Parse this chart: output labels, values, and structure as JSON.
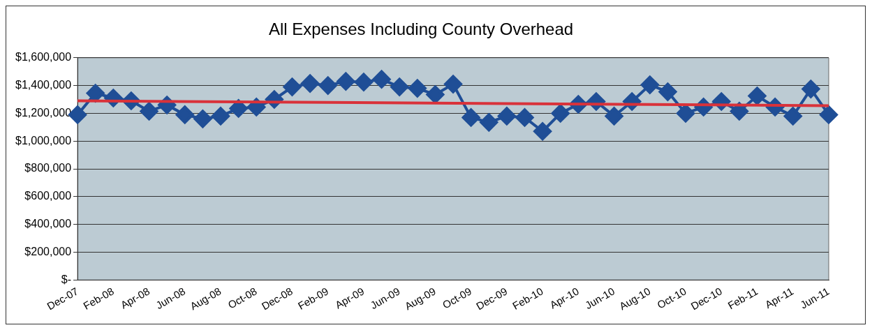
{
  "chart_data": {
    "type": "line",
    "title": "All Expenses Including County Overhead",
    "categories": [
      "Dec-07",
      null,
      "Feb-08",
      null,
      "Apr-08",
      null,
      "Jun-08",
      null,
      "Aug-08",
      null,
      "Oct-08",
      null,
      "Dec-08",
      null,
      "Feb-09",
      null,
      "Apr-09",
      null,
      "Jun-09",
      null,
      "Aug-09",
      null,
      "Oct-09",
      null,
      "Dec-09",
      null,
      "Feb-10",
      null,
      "Apr-10",
      null,
      "Jun-10",
      null,
      "Aug-10",
      null,
      "Oct-10",
      null,
      "Dec-10",
      null,
      "Feb-11",
      null,
      "Apr-11",
      null,
      "Jun-11"
    ],
    "series": [
      {
        "color": "#1f4e96",
        "marker": "diamond",
        "values": [
          1190000,
          1345000,
          1310000,
          1290000,
          1215000,
          1260000,
          1190000,
          1160000,
          1180000,
          1235000,
          1245000,
          1300000,
          1390000,
          1415000,
          1400000,
          1430000,
          1425000,
          1445000,
          1390000,
          1380000,
          1335000,
          1410000,
          1170000,
          1135000,
          1180000,
          1170000,
          1070000,
          1200000,
          1265000,
          1285000,
          1180000,
          1285000,
          1405000,
          1355000,
          1200000,
          1245000,
          1285000,
          1215000,
          1325000,
          1245000,
          1180000,
          1375000,
          1190000
        ]
      },
      {
        "type": "line",
        "color": "#d9323a",
        "marker": "none",
        "x": [
          "Dec-07",
          "Jun-11"
        ],
        "values": [
          1290000,
          1255000
        ]
      }
    ],
    "ylim": [
      0,
      1600000
    ],
    "yticks": [
      {
        "value": 0,
        "label": "$-"
      },
      {
        "value": 200000,
        "label": "$200,000"
      },
      {
        "value": 400000,
        "label": "$400,000"
      },
      {
        "value": 600000,
        "label": "$600,000"
      },
      {
        "value": 800000,
        "label": "$800,000"
      },
      {
        "value": 1000000,
        "label": "$1,000,000"
      },
      {
        "value": 1200000,
        "label": "$1,200,000"
      },
      {
        "value": 1400000,
        "label": "$1,400,000"
      },
      {
        "value": 1600000,
        "label": "$1,600,000"
      }
    ],
    "grid": "y",
    "legend": false
  }
}
